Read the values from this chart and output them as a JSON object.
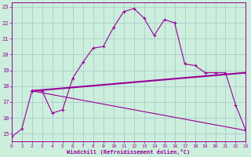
{
  "xlabel": "Windchill (Refroidissement éolien,°C)",
  "bg_color": "#cceedd",
  "grid_color": "#aacccc",
  "line_color": "#990099",
  "xlim": [
    0,
    23
  ],
  "ylim": [
    14.5,
    23.3
  ],
  "xticks": [
    0,
    1,
    2,
    3,
    4,
    5,
    6,
    7,
    8,
    9,
    10,
    11,
    12,
    13,
    14,
    15,
    16,
    17,
    18,
    19,
    20,
    21,
    22,
    23
  ],
  "yticks": [
    15,
    16,
    17,
    18,
    19,
    20,
    21,
    22,
    23
  ],
  "line1_x": [
    0,
    1,
    2,
    3,
    4,
    5,
    6,
    7,
    8,
    9,
    10,
    11,
    12,
    13,
    14,
    15,
    16,
    17,
    18,
    19,
    20,
    21,
    22,
    23
  ],
  "line1_y": [
    14.8,
    15.3,
    17.7,
    17.7,
    16.3,
    16.5,
    18.5,
    19.5,
    20.4,
    20.5,
    21.7,
    22.7,
    22.9,
    22.3,
    21.2,
    22.2,
    22.0,
    19.4,
    19.3,
    18.85,
    18.85,
    18.85,
    16.8,
    15.2
  ],
  "line2_x": [
    2,
    23
  ],
  "line2_y": [
    17.7,
    18.85
  ],
  "line3_x": [
    2,
    23
  ],
  "line3_y": [
    17.7,
    15.2
  ]
}
